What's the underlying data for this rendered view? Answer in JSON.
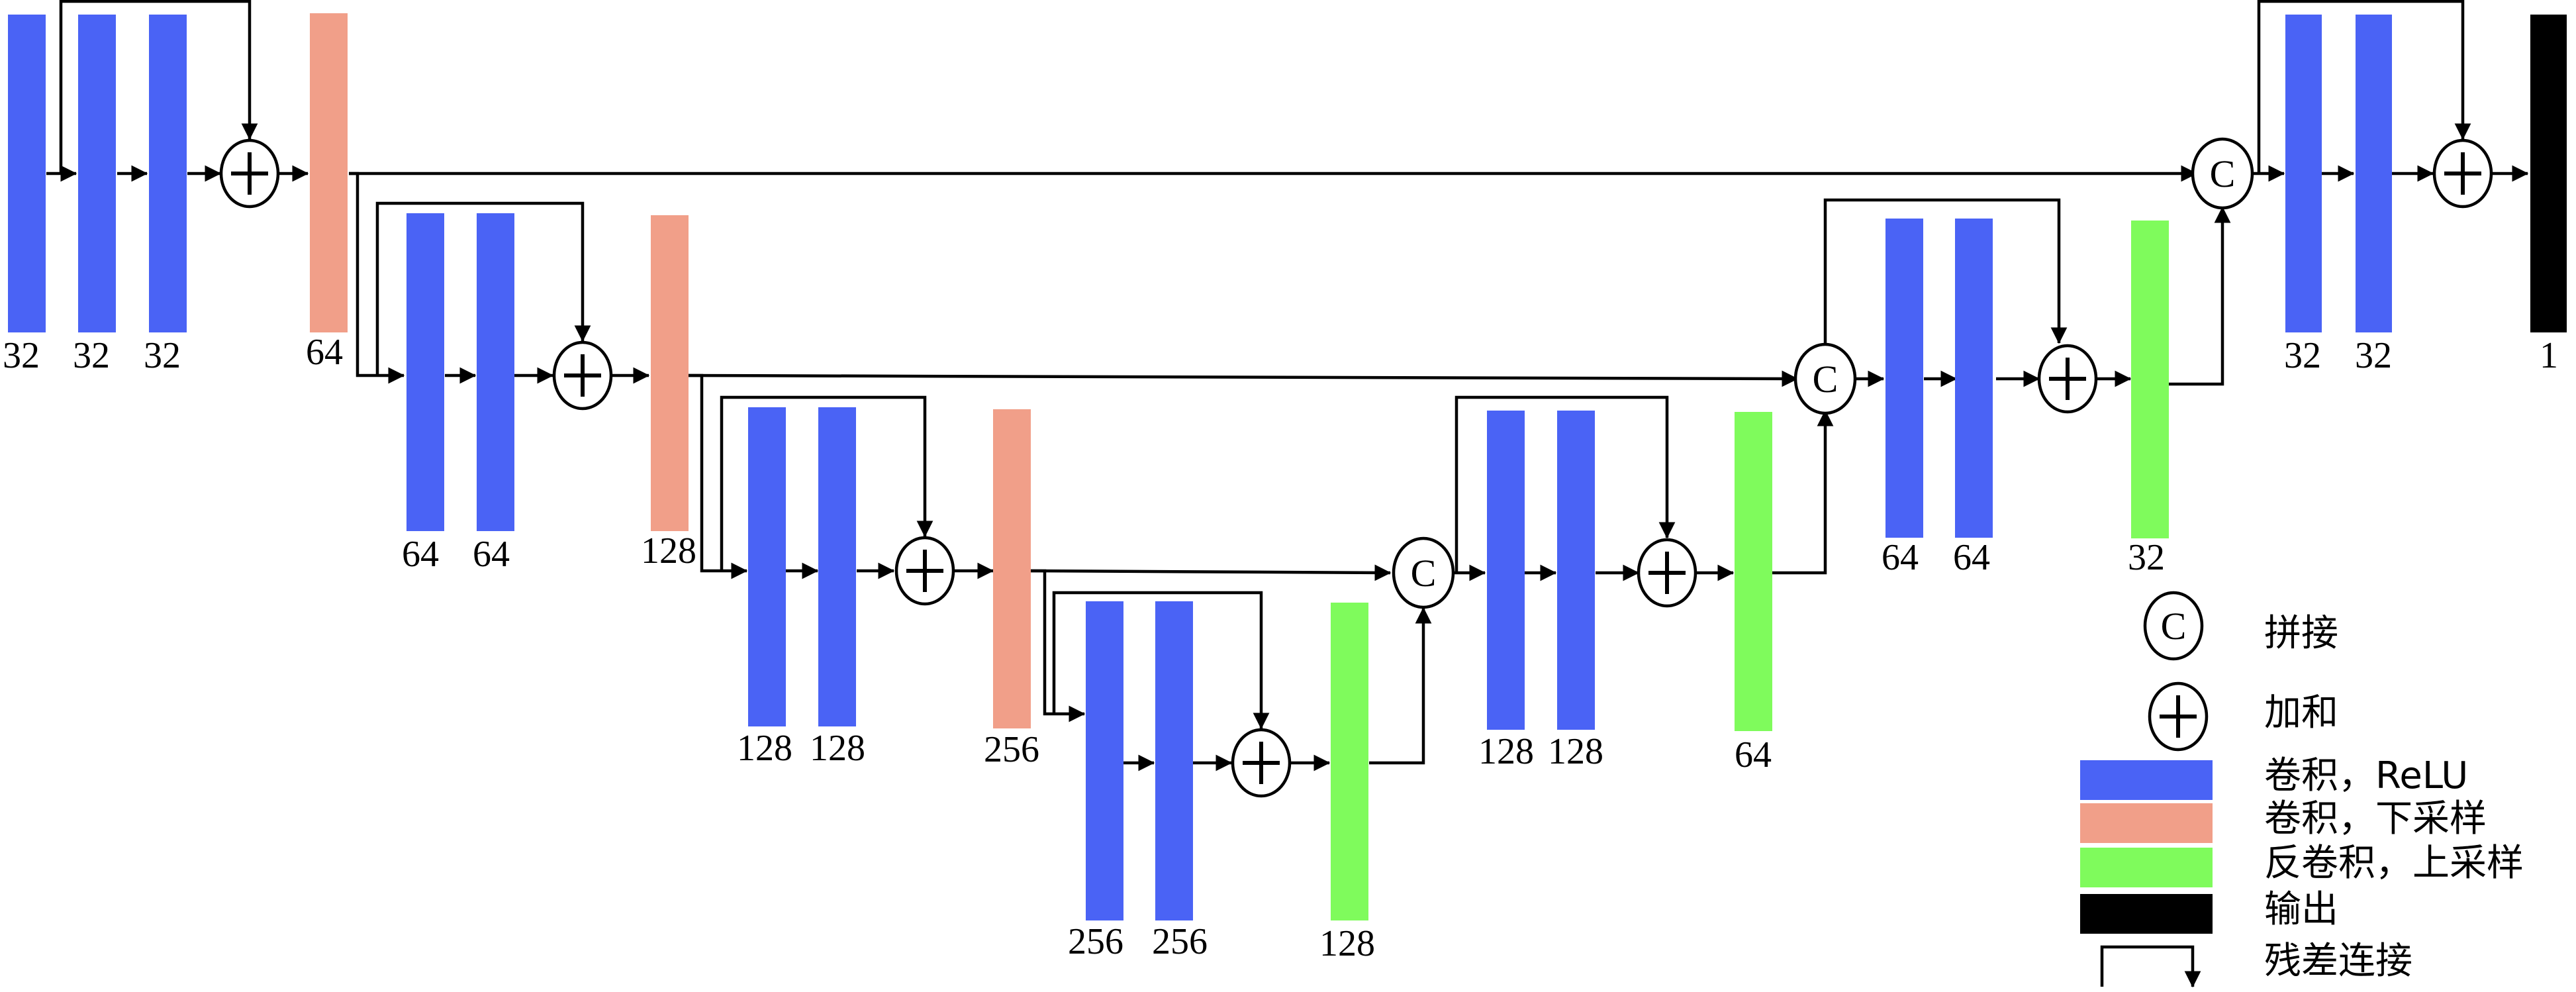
{
  "colors": {
    "conv_relu": "#4a63f5",
    "conv_down": "#f19f89",
    "deconv_up": "#7ffb5c",
    "output": "#000000",
    "line": "#000000"
  },
  "blocks": {
    "b1": {
      "label": "32",
      "kind": "conv_relu"
    },
    "b2": {
      "label": "32",
      "kind": "conv_relu"
    },
    "b3": {
      "label": "32",
      "kind": "conv_relu"
    },
    "d1": {
      "label": "64",
      "kind": "conv_down"
    },
    "b4": {
      "label": "64",
      "kind": "conv_relu"
    },
    "b5": {
      "label": "64",
      "kind": "conv_relu"
    },
    "d2": {
      "label": "128",
      "kind": "conv_down"
    },
    "b6": {
      "label": "128",
      "kind": "conv_relu"
    },
    "b7": {
      "label": "128",
      "kind": "conv_relu"
    },
    "d3": {
      "label": "256",
      "kind": "conv_down"
    },
    "b8": {
      "label": "256",
      "kind": "conv_relu"
    },
    "b9": {
      "label": "256",
      "kind": "conv_relu"
    },
    "u1": {
      "label": "128",
      "kind": "deconv_up"
    },
    "b10": {
      "label": "128",
      "kind": "conv_relu"
    },
    "b11": {
      "label": "128",
      "kind": "conv_relu"
    },
    "u2": {
      "label": "64",
      "kind": "deconv_up"
    },
    "b12": {
      "label": "64",
      "kind": "conv_relu"
    },
    "b13": {
      "label": "64",
      "kind": "conv_relu"
    },
    "u3": {
      "label": "32",
      "kind": "deconv_up"
    },
    "b14": {
      "label": "32",
      "kind": "conv_relu"
    },
    "b15": {
      "label": "32",
      "kind": "conv_relu"
    },
    "out": {
      "label": "1",
      "kind": "output"
    }
  },
  "ops": {
    "concat_symbol": "C",
    "sum_symbol": "+"
  },
  "legend": {
    "concat": "拼接",
    "sum": "加和",
    "conv_relu": "卷积，ReLU",
    "conv_down": "卷积，下采样",
    "deconv_up": "反卷积，上采样",
    "output": "输出",
    "residual": "残差连接"
  }
}
